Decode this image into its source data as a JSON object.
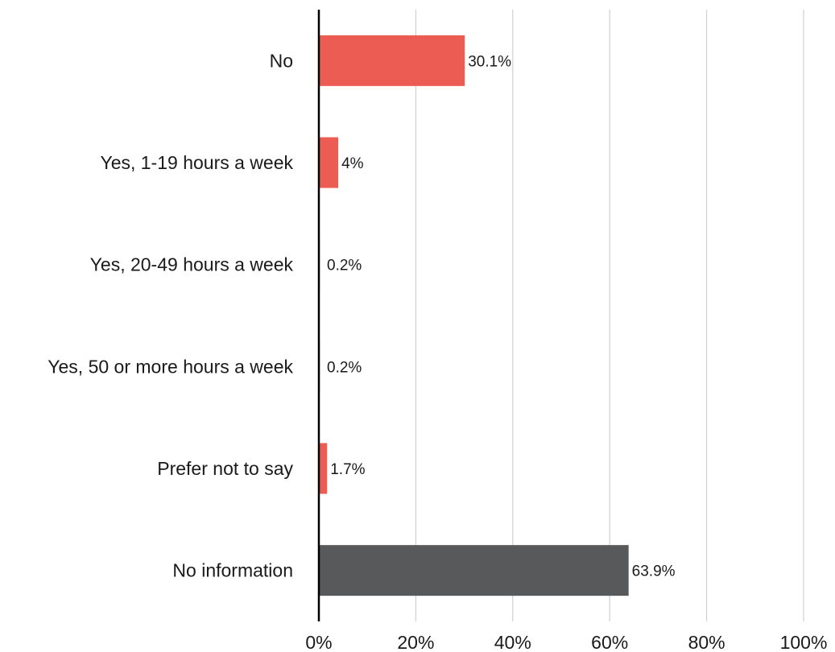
{
  "chart_data": {
    "type": "bar",
    "orientation": "horizontal",
    "categories": [
      "No",
      "Yes, 1-19 hours a week",
      "Yes, 20-49 hours a week",
      "Yes, 50 or more hours a week",
      "Prefer not to say",
      "No information"
    ],
    "values": [
      30.1,
      4,
      0.2,
      0.2,
      1.7,
      63.9
    ],
    "value_labels": [
      "30.1%",
      "4%",
      "0.2%",
      "0.2%",
      "1.7%",
      "63.9%"
    ],
    "bar_colors": [
      "#ec5c53",
      "#ec5c53",
      "#ec5c53",
      "#ec5c53",
      "#ec5c53",
      "#58595b"
    ],
    "x_ticks": [
      0,
      20,
      40,
      60,
      80,
      100
    ],
    "x_tick_labels": [
      "0%",
      "20%",
      "40%",
      "60%",
      "80%",
      "100%"
    ],
    "xlim": [
      0,
      100
    ],
    "grid": "vertical",
    "legend": "none"
  }
}
